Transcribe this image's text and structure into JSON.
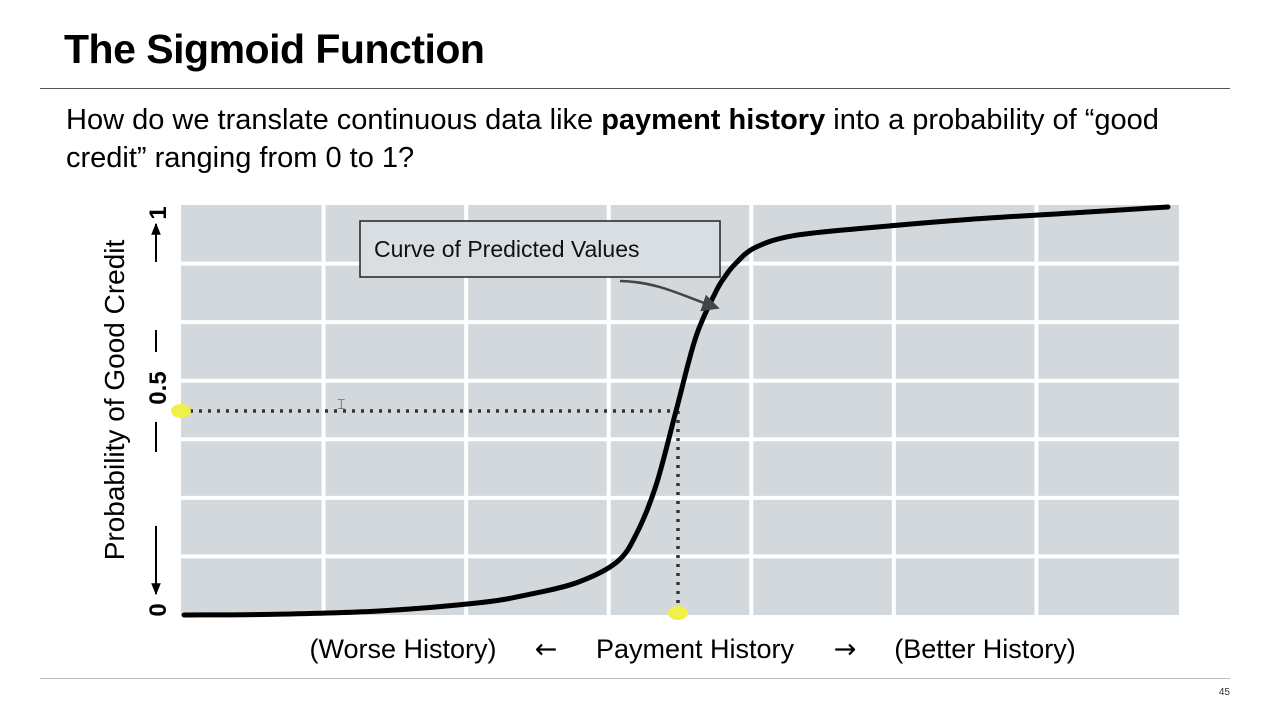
{
  "slide": {
    "title": "The Sigmoid Function",
    "question_pre": "How do we translate continuous data like ",
    "question_bold": "payment history",
    "question_post": " into a probability of “good credit” ranging from 0 to 1?",
    "page_number": "45"
  },
  "colors": {
    "plot_bg": "#d3d8dc",
    "grid": "#ffffff",
    "curve": "#000000",
    "marker": "#f0f04a"
  },
  "chart_data": {
    "type": "line",
    "title": "",
    "ylabel": "Probability of Good Credit",
    "xlabel": "Payment History",
    "x_left_label": "(Worse History)",
    "x_right_label": "(Better History)",
    "x_arrow_left": "←",
    "x_arrow_right": "→",
    "y_ticks": [
      "0",
      "0.5",
      "1"
    ],
    "ylim": [
      0,
      1
    ],
    "grid": true,
    "annotation": "Curve of Predicted Values",
    "series": [
      {
        "x": [
          0.0,
          0.1,
          0.2,
          0.3,
          0.35,
          0.4,
          0.44,
          0.46,
          0.48,
          0.5,
          0.52,
          0.54,
          0.55,
          0.56,
          0.58,
          0.62,
          0.7,
          0.8,
          0.9,
          1.0
        ],
        "y": [
          0.0,
          0.002,
          0.01,
          0.03,
          0.05,
          0.08,
          0.13,
          0.2,
          0.32,
          0.5,
          0.68,
          0.79,
          0.83,
          0.86,
          0.9,
          0.93,
          0.95,
          0.97,
          0.985,
          1.0
        ]
      }
    ],
    "highlight_point": {
      "x": 0.5,
      "y": 0.5
    }
  }
}
